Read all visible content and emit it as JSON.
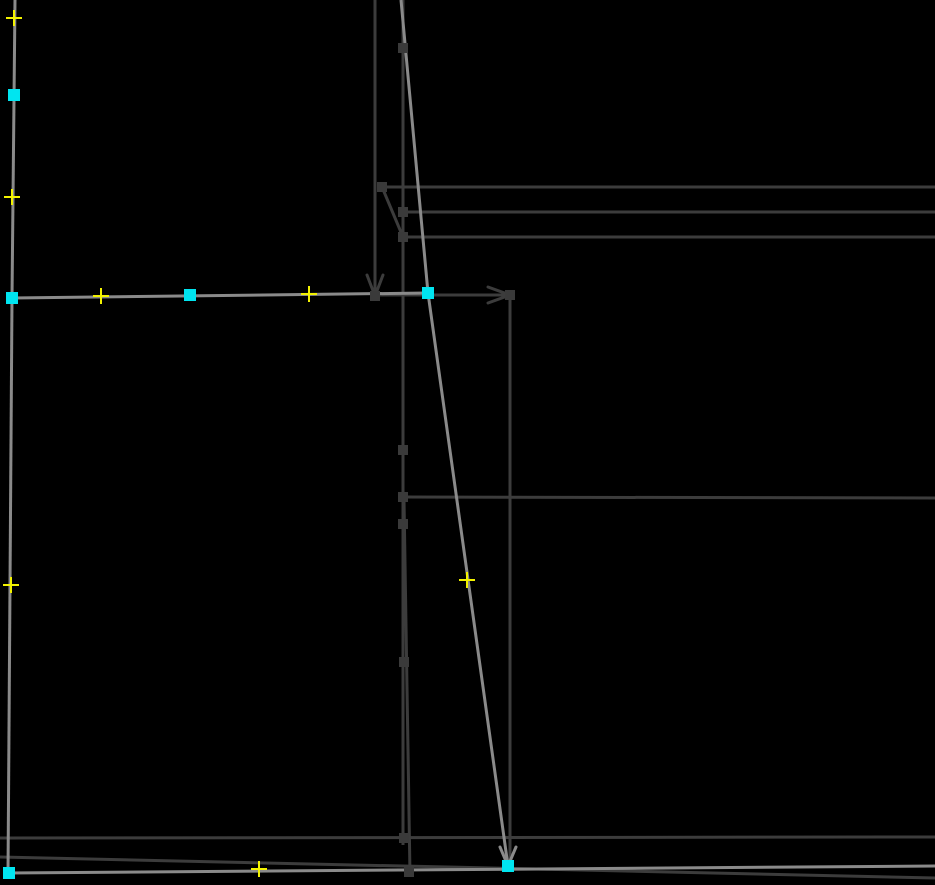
{
  "colors": {
    "background": "#000000",
    "dark_edge": "#3c3c3c",
    "light_edge": "#8a8a8a",
    "dark_vertex": "#3a3a3a",
    "selected_vertex": "#00e5f0",
    "midpoint_marker": "#f2f200"
  },
  "icons": {
    "selected_vertex": "cyan-square-icon",
    "midpoint": "yellow-cross-icon",
    "arrowhead": "open-arrowhead-icon"
  }
}
